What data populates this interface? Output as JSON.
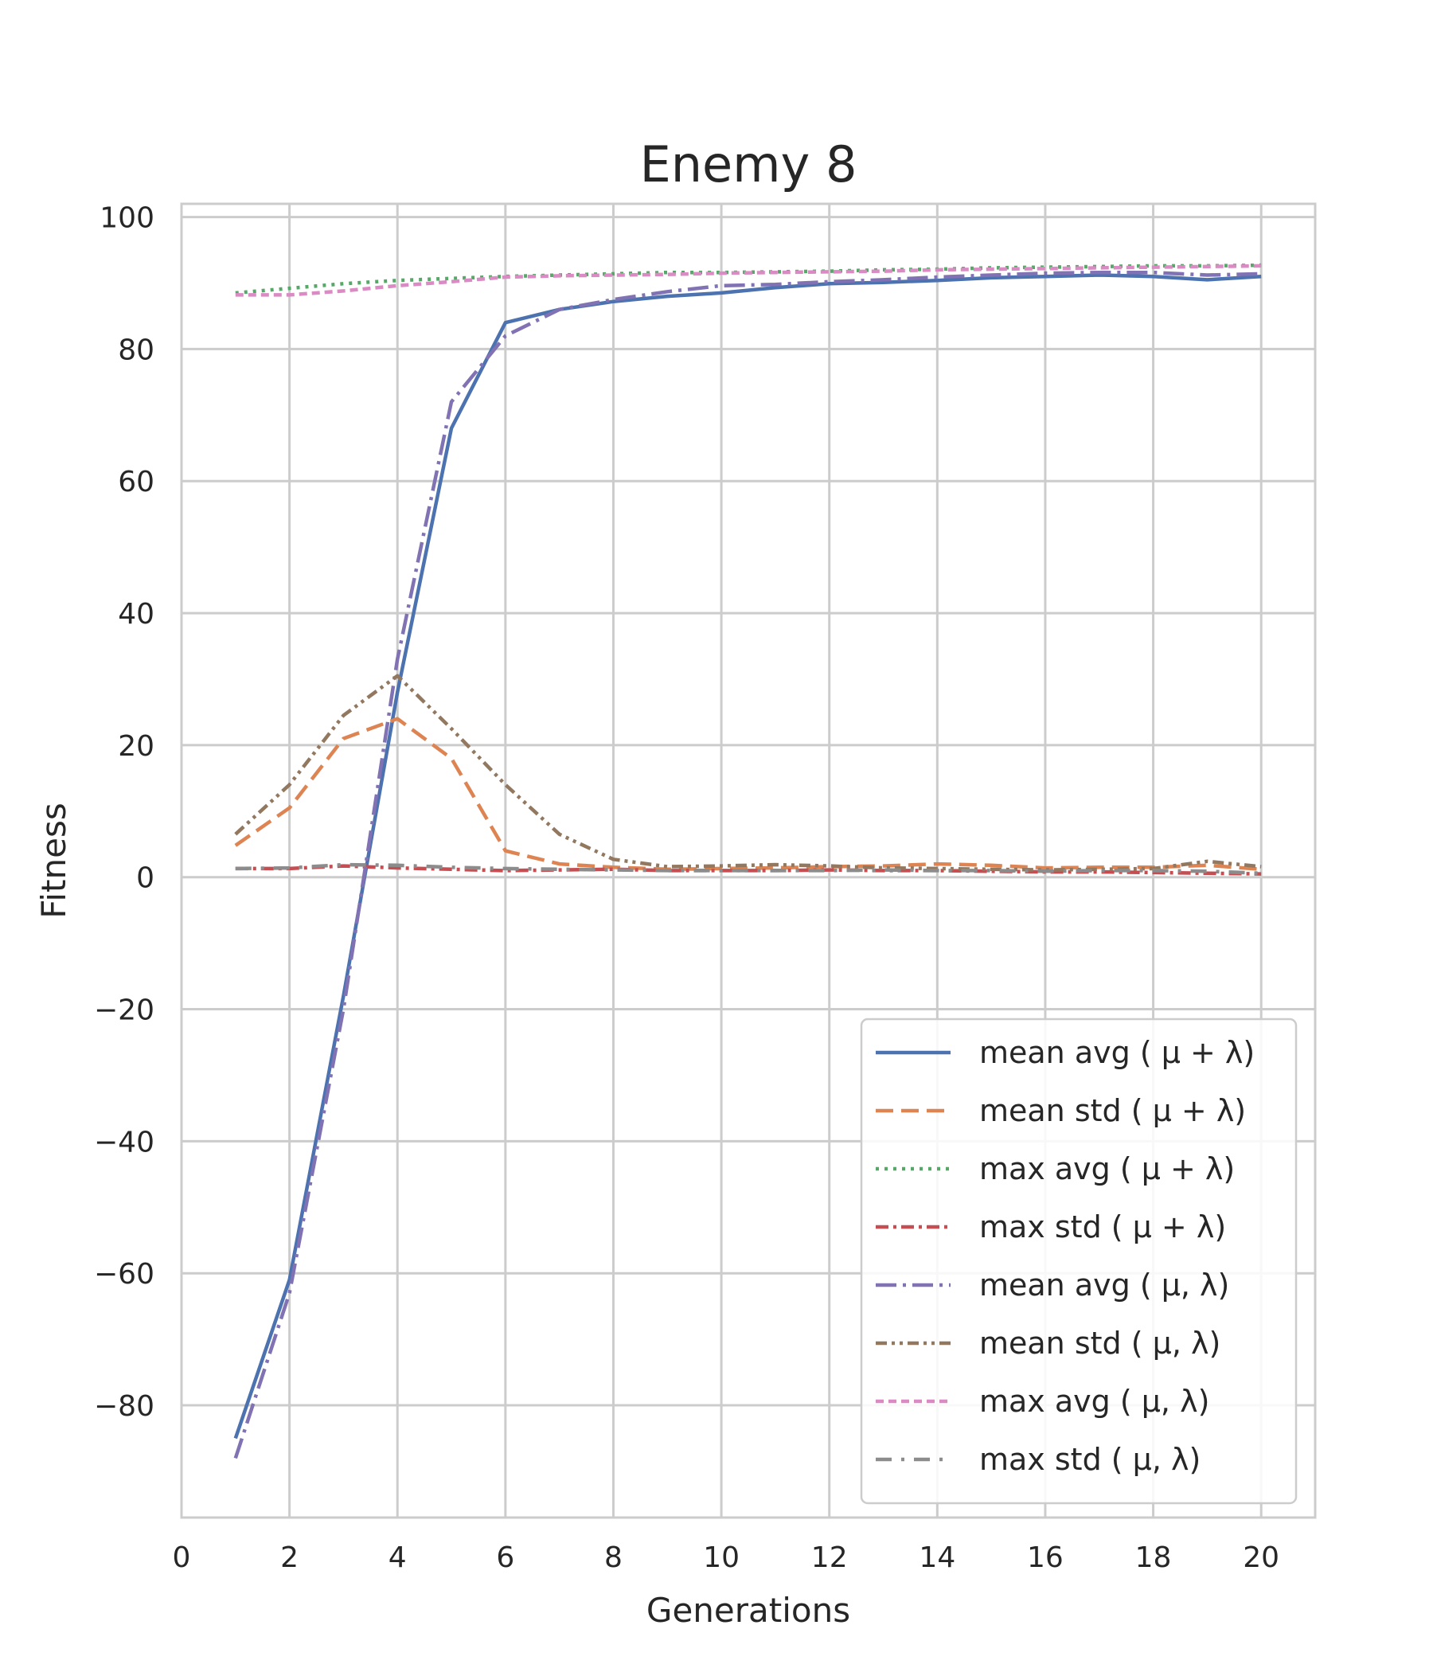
{
  "chart_data": {
    "type": "line",
    "title": "Enemy 8",
    "xlabel": "Generations",
    "ylabel": "Fitness",
    "xlim": [
      0,
      21
    ],
    "ylim": [
      -97,
      102
    ],
    "xticks": [
      0,
      2,
      4,
      6,
      8,
      10,
      12,
      14,
      16,
      18,
      20
    ],
    "yticks": [
      -80,
      -60,
      -40,
      -20,
      0,
      20,
      40,
      60,
      80,
      100
    ],
    "xtick_labels": [
      "0",
      "2",
      "4",
      "6",
      "8",
      "10",
      "12",
      "14",
      "16",
      "18",
      "20"
    ],
    "ytick_labels": [
      "−80",
      "−60",
      "−40",
      "−20",
      "0",
      "20",
      "40",
      "60",
      "80",
      "100"
    ],
    "grid": true,
    "legend_position": "lower-right",
    "x": [
      1,
      2,
      3,
      4,
      5,
      6,
      7,
      8,
      9,
      10,
      11,
      12,
      13,
      14,
      15,
      16,
      17,
      18,
      19,
      20
    ],
    "series": [
      {
        "name": "mean avg ( μ + λ)",
        "color": "#4c72b0",
        "dash": "solid",
        "values": [
          -85,
          -61,
          -18,
          28,
          68,
          84,
          86,
          87.2,
          88,
          88.5,
          89.3,
          89.9,
          90.1,
          90.4,
          90.8,
          91,
          91.2,
          91,
          90.5,
          91
        ]
      },
      {
        "name": "mean std ( μ + λ)",
        "color": "#dd8452",
        "dash": "dashed",
        "values": [
          4.8,
          10.5,
          21,
          24,
          18,
          4,
          2,
          1.5,
          1.2,
          1.3,
          1.4,
          1.6,
          1.7,
          2,
          1.8,
          1.4,
          1.5,
          1.5,
          1.8,
          1.2
        ]
      },
      {
        "name": "max avg ( μ + λ)",
        "color": "#55a868",
        "dash": "dotted",
        "values": [
          88.5,
          89.2,
          89.9,
          90.4,
          90.7,
          91,
          91.2,
          91.4,
          91.6,
          91.6,
          91.7,
          91.8,
          92,
          92.1,
          92.3,
          92.4,
          92.5,
          92.6,
          92.6,
          92.7
        ]
      },
      {
        "name": "max std ( μ + λ)",
        "color": "#c44e52",
        "dash": "dashdot",
        "values": [
          1.3,
          1.3,
          1.7,
          1.4,
          1.2,
          1,
          1.1,
          1.2,
          1,
          1,
          1,
          1.1,
          1,
          1,
          0.9,
          0.8,
          0.8,
          0.7,
          0.6,
          0.5
        ]
      },
      {
        "name": "mean avg ( μ, λ)",
        "color": "#8172b3",
        "dash": "dashdot-long",
        "values": [
          -88,
          -63,
          -20,
          33,
          72,
          82,
          86,
          87.5,
          88.7,
          89.6,
          89.8,
          90.2,
          90.5,
          90.9,
          91.2,
          91.5,
          91.6,
          91.6,
          91.2,
          91.4
        ]
      },
      {
        "name": "mean std ( μ, λ)",
        "color": "#937860",
        "dash": "dashdotdot",
        "values": [
          6.5,
          14,
          24.5,
          30.5,
          22.5,
          14,
          6.5,
          2.7,
          1.6,
          1.7,
          1.9,
          1.7,
          1.4,
          1.3,
          1.2,
          1.1,
          1.2,
          1.3,
          2.4,
          1.6
        ]
      },
      {
        "name": "max avg ( μ, λ)",
        "color": "#da8bc3",
        "dash": "short-dashed",
        "values": [
          88.2,
          88.2,
          88.8,
          89.6,
          90.2,
          90.9,
          91.1,
          91.2,
          91.3,
          91.5,
          91.6,
          91.7,
          91.8,
          92,
          92.1,
          92.2,
          92.3,
          92.4,
          92.5,
          92.6
        ]
      },
      {
        "name": "max std ( μ, λ)",
        "color": "#8c8c8c",
        "dash": "dash-dot-wide",
        "values": [
          1.3,
          1.4,
          1.9,
          1.8,
          1.5,
          1.3,
          1.2,
          1.1,
          1,
          1,
          1,
          1,
          1.1,
          1,
          1,
          0.9,
          1,
          1,
          0.9,
          0.6
        ]
      }
    ]
  }
}
